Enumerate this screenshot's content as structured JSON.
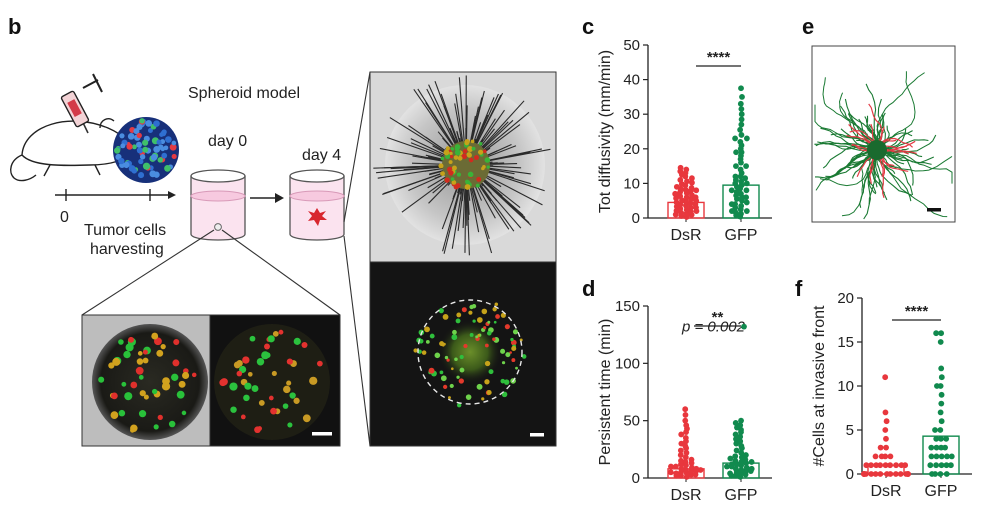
{
  "figure": {
    "panel_labels": {
      "b": "b",
      "c": "c",
      "d": "d",
      "e": "e",
      "f": "f"
    },
    "schematic": {
      "time_zero": "0",
      "harvest_line1": "Tumor cells",
      "harvest_line2": "harvesting",
      "spheroid_model": "Spheroid model",
      "day0": "day 0",
      "day4": "day 4"
    }
  },
  "colors": {
    "dsr": "#e8373d",
    "gfp": "#118a4e",
    "axis": "#222222"
  },
  "chart_data": [
    {
      "id": "c",
      "type": "scatter",
      "title": "",
      "xlabel": "",
      "ylabel": "Tot diffusivity (mm/min)",
      "categories": [
        "DsR",
        "GFP"
      ],
      "yticks": [
        "0",
        "10",
        "20",
        "30",
        "40",
        "50"
      ],
      "ylim": [
        0,
        50
      ],
      "bar_means": [
        4.5,
        9.5
      ],
      "significance": "****",
      "annotation": "",
      "series": [
        {
          "name": "DsR",
          "values": [
            0.3,
            0.6,
            0.9,
            1.2,
            1.5,
            1.8,
            2.1,
            2.4,
            2.7,
            3.0,
            3.3,
            3.6,
            3.9,
            4.2,
            4.5,
            4.8,
            5.1,
            5.4,
            5.7,
            6.0,
            6.3,
            6.6,
            6.9,
            7.2,
            7.5,
            7.8,
            8.1,
            8.4,
            8.7,
            9.0,
            9.4,
            9.8,
            10.2,
            10.6,
            11.0,
            11.5,
            12.0,
            12.5,
            13.0,
            13.5,
            14.0,
            14.5,
            1.0,
            2.0,
            3.0,
            4.0,
            5.0,
            6.0,
            7.0,
            8.0
          ]
        },
        {
          "name": "GFP",
          "values": [
            0.4,
            0.8,
            1.2,
            1.6,
            2.0,
            2.5,
            3.0,
            3.5,
            4.0,
            4.5,
            5.0,
            5.5,
            6.0,
            6.5,
            7.0,
            7.5,
            8.0,
            8.5,
            9.0,
            9.5,
            10.0,
            10.5,
            11.0,
            11.5,
            12.0,
            13.0,
            14.0,
            15.0,
            16.0,
            17.0,
            18.0,
            19.0,
            20.0,
            21.0,
            22.0,
            23.0,
            24.0,
            25.5,
            27.0,
            28.5,
            30.0,
            31.5,
            33.0,
            35.0,
            37.5,
            2.0,
            4.0,
            6.0,
            8.0,
            10.0,
            12.0,
            15.0,
            19.0,
            23.0
          ]
        }
      ]
    },
    {
      "id": "d",
      "type": "scatter",
      "title": "",
      "xlabel": "",
      "ylabel": "Persistent time (min)",
      "categories": [
        "DsR",
        "GFP"
      ],
      "yticks": [
        "0",
        "50",
        "100",
        "150"
      ],
      "ylim": [
        0,
        150
      ],
      "bar_means": [
        8,
        13
      ],
      "significance": "**",
      "annotation": "p = 0.002",
      "series": [
        {
          "name": "DsR",
          "values": [
            1,
            2,
            3,
            4,
            5,
            6,
            7,
            8,
            9,
            10,
            11,
            12,
            13,
            14,
            15,
            16,
            18,
            20,
            22,
            24,
            26,
            28,
            30,
            32,
            35,
            38,
            40,
            43,
            46,
            50,
            55,
            60,
            2,
            4,
            6,
            8,
            10,
            3,
            5,
            7
          ]
        },
        {
          "name": "GFP",
          "values": [
            1,
            2,
            3,
            4,
            5,
            6,
            7,
            8,
            9,
            10,
            11,
            12,
            13,
            14,
            15,
            16,
            17,
            18,
            19,
            20,
            22,
            24,
            26,
            28,
            30,
            32,
            34,
            36,
            38,
            40,
            42,
            44,
            46,
            48,
            50,
            2,
            4,
            6,
            8,
            10,
            12,
            14
          ]
        }
      ]
    },
    {
      "id": "f",
      "type": "scatter",
      "title": "",
      "xlabel": "",
      "ylabel": "#Cells at invasive front",
      "categories": [
        "DsR",
        "GFP"
      ],
      "yticks": [
        "0",
        "5",
        "10",
        "15",
        "20"
      ],
      "ylim": [
        0,
        20
      ],
      "bar_means": [
        1,
        4.3
      ],
      "significance": "****",
      "annotation": "",
      "series": [
        {
          "name": "DsR",
          "values": [
            0,
            0,
            0,
            0,
            0,
            0,
            0,
            0,
            0,
            0,
            0,
            0,
            0,
            0,
            0,
            0,
            1,
            1,
            1,
            1,
            1,
            1,
            1,
            1,
            1,
            2,
            2,
            2,
            2,
            3,
            3,
            4,
            5,
            6,
            7,
            11
          ]
        },
        {
          "name": "GFP",
          "values": [
            0,
            0,
            0,
            0,
            1,
            1,
            1,
            1,
            1,
            2,
            2,
            2,
            2,
            2,
            3,
            3,
            3,
            3,
            4,
            4,
            4,
            5,
            5,
            6,
            7,
            8,
            9,
            10,
            10,
            11,
            12,
            15,
            16,
            16
          ]
        }
      ]
    }
  ]
}
